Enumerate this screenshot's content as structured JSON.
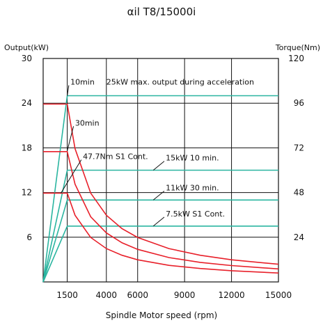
{
  "chart_data": {
    "type": "line",
    "title": "αil T8/15000i",
    "xlabel": "Spindle Motor speed (rpm)",
    "ylabel_left": "Output(kW)",
    "ylabel_right": "Torque(Nm)",
    "xlim": [
      0,
      15000
    ],
    "ylim_left": [
      0,
      30
    ],
    "ylim_right": [
      0,
      120
    ],
    "x_ticks": [
      "1500",
      "4000",
      "6000",
      "9000",
      "12000",
      "15000"
    ],
    "y_ticks_left": [
      "30",
      "24",
      "18",
      "12",
      "6"
    ],
    "y_ticks_right": [
      "120",
      "96",
      "72",
      "48",
      "24"
    ],
    "grid": true,
    "colors": {
      "output": "#2ab5a0",
      "torque": "#e8202a",
      "axis": "#111111"
    },
    "output_series": [
      {
        "name": "25kW max. output during acceleration",
        "x": [
          0,
          1500,
          15000
        ],
        "y": [
          0,
          25,
          25
        ]
      },
      {
        "name": "15kW 10 min.",
        "x": [
          0,
          1500,
          15000
        ],
        "y": [
          0,
          15,
          15
        ]
      },
      {
        "name": "11kW 30 min.",
        "x": [
          0,
          1500,
          15000
        ],
        "y": [
          0,
          11,
          11
        ]
      },
      {
        "name": "7.5kW S1 Cont.",
        "x": [
          0,
          1500,
          15000
        ],
        "y": [
          0,
          7.5,
          7.5
        ]
      }
    ],
    "torque_series": [
      {
        "name": "10min",
        "x": [
          0,
          1500,
          2000,
          3000,
          4000,
          5000,
          6000,
          8000,
          10000,
          12000,
          15000
        ],
        "y": [
          95.5,
          95.5,
          71.6,
          47.7,
          35.8,
          28.6,
          23.9,
          17.9,
          14.3,
          11.9,
          9.5
        ]
      },
      {
        "name": "30min",
        "x": [
          0,
          1500,
          2000,
          3000,
          4000,
          5000,
          6000,
          8000,
          10000,
          12000,
          15000
        ],
        "y": [
          70,
          70,
          52.5,
          35,
          26.3,
          21,
          17.5,
          13.1,
          10.5,
          8.8,
          7
        ]
      },
      {
        "name": "47.7Nm S1 Cont.",
        "x": [
          0,
          1500,
          2000,
          3000,
          4000,
          5000,
          6000,
          8000,
          10000,
          12000,
          15000
        ],
        "y": [
          47.7,
          47.7,
          35.8,
          23.9,
          17.9,
          14.3,
          11.9,
          8.9,
          7.2,
          6,
          4.8
        ]
      }
    ],
    "annotations": [
      {
        "text": "10min",
        "x": 1700,
        "y_kw": 26.5
      },
      {
        "text": "25kW max. output during acceleration",
        "x": 4000,
        "y_kw": 26.5
      },
      {
        "text": "30min",
        "x": 2000,
        "y_kw": 21
      },
      {
        "text": "47.7Nm S1 Cont.",
        "x": 2500,
        "y_kw": 16.5
      },
      {
        "text": "15kW 10 min.",
        "x": 7800,
        "y_kw": 16.3
      },
      {
        "text": "11kW 30 min.",
        "x": 7800,
        "y_kw": 12.3
      },
      {
        "text": "7.5kW S1 Cont.",
        "x": 7800,
        "y_kw": 8.8
      }
    ]
  }
}
